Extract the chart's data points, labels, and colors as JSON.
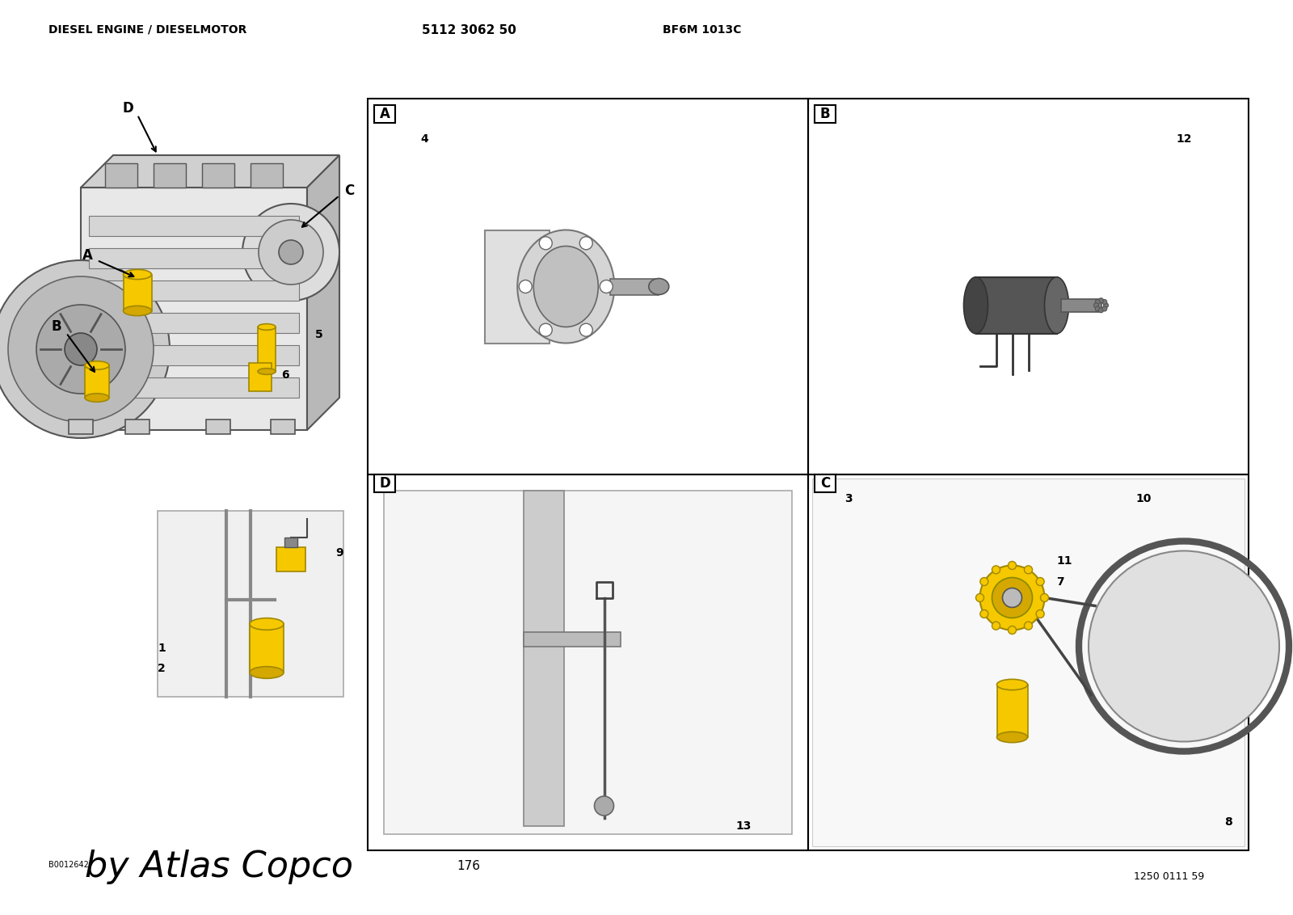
{
  "title_left": "DIESEL ENGINE / DIESELMOTOR",
  "title_center": "5112 3062 50",
  "title_right": "BF6M 1013C",
  "footer_left_small": "B0012642",
  "footer_left_large": "by Atlas Copco",
  "footer_center": "176",
  "footer_right": "1250 0111 59",
  "background_color": "#ffffff",
  "border_color": "#000000",
  "yellow_color": "#f5c800",
  "gray_light": "#cccccc",
  "gray_med": "#999999",
  "gray_dark": "#555555",
  "box_labels": [
    "A",
    "B",
    "C",
    "D"
  ],
  "part_numbers": [
    "1",
    "2",
    "3",
    "4",
    "5",
    "6",
    "7",
    "8",
    "9",
    "10",
    "11",
    "12",
    "13"
  ]
}
